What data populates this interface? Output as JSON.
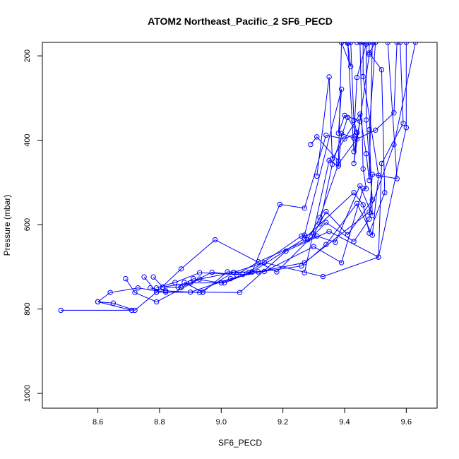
{
  "chart_data": {
    "type": "line",
    "title": "ATOM2 Northeast_Pacific_2 SF6_PECD",
    "xlabel": "SF6_PECD",
    "ylabel": "Pressure (mbar)",
    "xlim": [
      8.42,
      9.7
    ],
    "ylim": [
      1035,
      168
    ],
    "y_reversed": true,
    "xticks": [
      8.6,
      8.8,
      9.0,
      9.2,
      9.4,
      9.6
    ],
    "yticks": [
      200,
      400,
      600,
      800,
      1000
    ],
    "grid": false,
    "legend": "none",
    "color": "#0000ff",
    "series": [
      {
        "x": [
          8.48,
          8.71,
          8.6,
          8.65,
          8.72,
          8.79,
          8.9,
          9.03,
          9.12,
          9.27,
          9.48,
          9.56,
          9.63
        ],
        "y": [
          803,
          803,
          783,
          786,
          803,
          760,
          760,
          728,
          712,
          690,
          570,
          410,
          168
        ]
      },
      {
        "x": [
          8.6,
          8.64,
          8.73,
          8.82,
          8.94,
          9.06,
          9.21,
          9.35,
          9.51,
          9.6,
          9.6
        ],
        "y": [
          783,
          761,
          750,
          760,
          760,
          761,
          663,
          616,
          677,
          370,
          168
        ]
      },
      {
        "x": [
          8.69,
          8.72,
          8.79,
          8.93,
          9.04,
          9.14,
          9.33,
          9.51,
          9.52,
          9.59,
          9.58
        ],
        "y": [
          728,
          761,
          783,
          729,
          713,
          690,
          723,
          677,
          455,
          360,
          168
        ]
      },
      {
        "x": [
          8.75,
          8.79,
          8.87,
          8.98,
          9.18,
          9.34,
          9.43,
          9.48,
          9.49,
          9.57,
          9.54
        ],
        "y": [
          724,
          760,
          705,
          636,
          712,
          595,
          640,
          587,
          481,
          491,
          168
        ]
      },
      {
        "x": [
          8.78,
          8.81,
          8.9,
          9.01,
          9.1,
          9.27,
          9.43,
          9.46,
          9.48,
          9.53,
          9.52,
          9.48,
          9.5
        ],
        "y": [
          724,
          748,
          738,
          738,
          712,
          633,
          524,
          553,
          620,
          524,
          233,
          193,
          168
        ]
      },
      {
        "x": [
          8.79,
          8.85,
          8.93,
          9.07,
          9.26,
          9.34,
          9.44,
          9.49,
          9.51,
          9.46,
          9.46
        ],
        "y": [
          750,
          737,
          714,
          718,
          698,
          647,
          550,
          625,
          483,
          249,
          168
        ]
      },
      {
        "x": [
          8.77,
          8.82,
          8.93,
          9.04,
          9.14,
          9.3,
          9.39,
          9.46,
          9.47,
          9.46,
          9.45
        ],
        "y": [
          750,
          757,
          761,
          713,
          711,
          652,
          690,
          514,
          515,
          468,
          168
        ]
      },
      {
        "x": [
          8.81,
          8.87,
          8.97,
          9.05,
          9.12,
          9.31,
          9.37,
          9.45,
          9.49,
          9.48,
          9.5
        ],
        "y": [
          748,
          749,
          713,
          719,
          688,
          627,
          642,
          508,
          578,
          375,
          168
        ]
      },
      {
        "x": [
          8.88,
          8.94,
          9.02,
          9.09,
          9.26,
          9.3,
          9.34,
          9.41,
          9.49,
          9.47,
          9.47
        ],
        "y": [
          737,
          760,
          712,
          713,
          627,
          622,
          569,
          624,
          541,
          352,
          168
        ]
      },
      {
        "x": [
          8.86,
          8.91,
          9.0,
          9.1,
          9.19,
          9.27,
          9.34,
          9.4,
          9.44,
          9.43,
          9.42
        ],
        "y": [
          748,
          728,
          738,
          712,
          552,
          561,
          388,
          397,
          382,
          353,
          168
        ]
      },
      {
        "x": [
          9.27,
          9.35,
          9.38,
          9.39,
          9.43,
          9.44,
          9.47,
          9.44
        ],
        "y": [
          714,
          448,
          461,
          384,
          395,
          251,
          172,
          168
        ]
      },
      {
        "x": [
          9.32,
          9.36,
          9.41,
          9.44,
          9.43,
          9.48,
          9.48
        ],
        "y": [
          598,
          457,
          346,
          382,
          455,
          197,
          168
        ]
      },
      {
        "x": [
          9.27,
          9.39,
          9.38,
          9.4,
          9.45,
          9.43,
          9.41
        ],
        "y": [
          625,
          279,
          383,
          341,
          355,
          427,
          168
        ]
      },
      {
        "x": [
          9.29,
          9.31,
          9.38,
          9.39,
          9.41,
          9.42,
          9.39
        ],
        "y": [
          410,
          392,
          449,
          168,
          170,
          225,
          168
        ]
      },
      {
        "x": [
          9.31,
          9.35,
          9.36,
          9.45,
          9.47,
          9.48,
          9.49
        ],
        "y": [
          485,
          250,
          444,
          338,
          432,
          495,
          168
        ]
      },
      {
        "x": [
          9.28,
          9.32,
          9.38,
          9.44,
          9.5,
          9.56,
          9.57
        ],
        "y": [
          636,
          583,
          456,
          397,
          376,
          335,
          168
        ]
      }
    ]
  }
}
